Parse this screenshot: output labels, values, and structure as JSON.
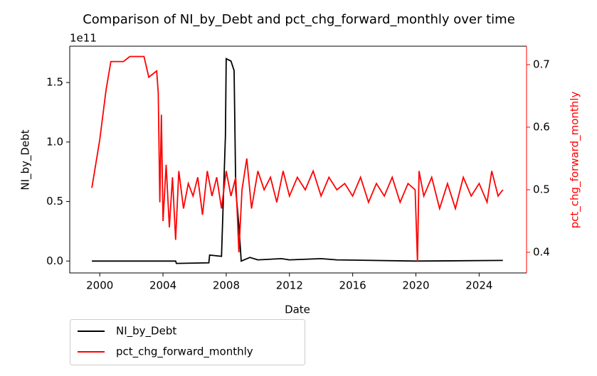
{
  "chart_data": {
    "type": "line",
    "title": "Comparison of NI_by_Debt and pct_chg_forward_monthly over time",
    "xlabel": "Date",
    "ylabel": "NI_by_Debt",
    "y2label": "pct_chg_forward_monthly",
    "y_offset_label": "1e11",
    "y2color": "#ff0000",
    "legend": "below left",
    "xlim": [
      1998.1,
      2027.0
    ],
    "xticks": [
      2000,
      2004,
      2008,
      2012,
      2016,
      2020,
      2024
    ],
    "ylim": [
      -10000000000.0,
      180500000000.0
    ],
    "yticks": [
      {
        "value": 0,
        "label": "0.0"
      },
      {
        "value": 50000000000.0,
        "label": "0.5"
      },
      {
        "value": 100000000000.0,
        "label": "1.0"
      },
      {
        "value": 150000000000.0,
        "label": "1.5"
      }
    ],
    "y2lim": [
      0.367,
      0.7295
    ],
    "y2ticks": [
      0.4,
      0.5,
      0.6,
      0.7
    ],
    "series": [
      {
        "name": "NI_by_Debt",
        "color": "#000000",
        "x": [
          1999.5,
          2004.8,
          2004.85,
          2006.9,
          2006.95,
          2007.7,
          2007.8,
          2007.95,
          2008.0,
          2008.3,
          2008.5,
          2008.6,
          2008.8,
          2008.95,
          2009.5,
          2010.0,
          2011.5,
          2012.0,
          2014.0,
          2015.0,
          2020.0,
          2025.5
        ],
        "values": [
          0,
          0,
          -2000000000.0,
          -1500000000.0,
          5000000000.0,
          4000000000.0,
          45000000000.0,
          105000000000.0,
          170000000000.0,
          168000000000.0,
          160000000000.0,
          60000000000.0,
          30000000000.0,
          0,
          3000000000.0,
          1000000000.0,
          2000000000.0,
          1000000000.0,
          2000000000.0,
          1000000000.0,
          0,
          500000000.0
        ]
      },
      {
        "name": "pct_chg_forward_monthly",
        "color": "#ff0000",
        "axis": "y2",
        "x": [
          1999.5,
          2000.0,
          2000.4,
          2000.7,
          2001.5,
          2001.9,
          2002.8,
          2003.1,
          2003.6,
          2003.7,
          2003.8,
          2003.9,
          2004.0,
          2004.2,
          2004.4,
          2004.6,
          2004.8,
          2005.0,
          2005.3,
          2005.6,
          2005.9,
          2006.2,
          2006.5,
          2006.8,
          2007.1,
          2007.4,
          2007.7,
          2008.0,
          2008.3,
          2008.6,
          2008.8,
          2009.0,
          2009.3,
          2009.6,
          2010.0,
          2010.4,
          2010.8,
          2011.2,
          2011.6,
          2012.0,
          2012.5,
          2013.0,
          2013.5,
          2014.0,
          2014.5,
          2015.0,
          2015.5,
          2016.0,
          2016.5,
          2017.0,
          2017.5,
          2018.0,
          2018.5,
          2019.0,
          2019.5,
          2019.95,
          2020.1,
          2020.2,
          2020.5,
          2021.0,
          2021.5,
          2022.0,
          2022.5,
          2023.0,
          2023.5,
          2024.0,
          2024.5,
          2024.8,
          2025.2,
          2025.5
        ],
        "values": [
          0.503,
          0.58,
          0.66,
          0.705,
          0.705,
          0.713,
          0.713,
          0.68,
          0.69,
          0.655,
          0.48,
          0.62,
          0.45,
          0.54,
          0.44,
          0.52,
          0.42,
          0.53,
          0.47,
          0.51,
          0.49,
          0.52,
          0.46,
          0.53,
          0.49,
          0.52,
          0.47,
          0.53,
          0.49,
          0.52,
          0.4,
          0.5,
          0.55,
          0.47,
          0.53,
          0.5,
          0.52,
          0.48,
          0.53,
          0.49,
          0.52,
          0.5,
          0.53,
          0.49,
          0.52,
          0.5,
          0.51,
          0.49,
          0.52,
          0.48,
          0.51,
          0.49,
          0.52,
          0.48,
          0.51,
          0.5,
          0.385,
          0.53,
          0.49,
          0.52,
          0.47,
          0.51,
          0.47,
          0.52,
          0.49,
          0.51,
          0.48,
          0.53,
          0.49,
          0.5
        ]
      }
    ]
  }
}
